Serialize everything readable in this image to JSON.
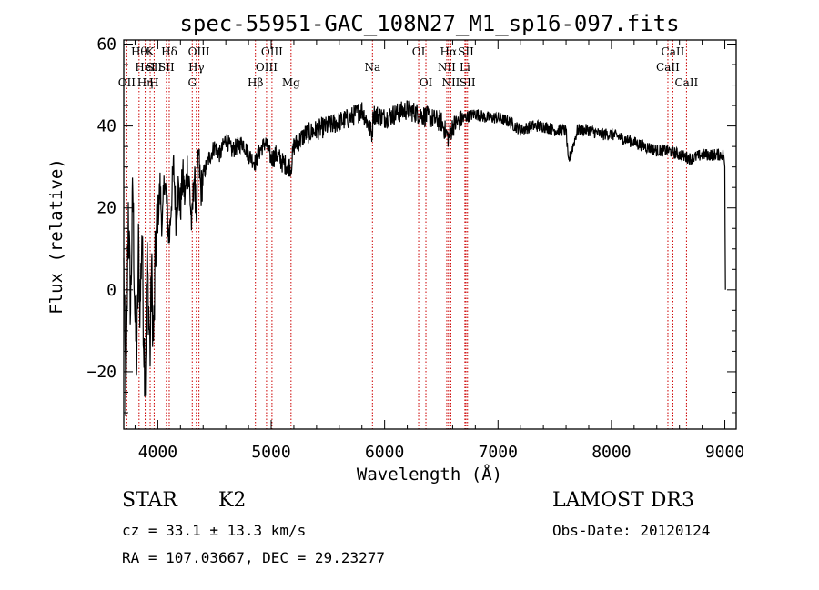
{
  "chart_data": {
    "type": "line",
    "title": "spec-55951-GAC_108N27_M1_sp16-097.fits",
    "xlabel": "Wavelength (Å)",
    "ylabel": "Flux (relative)",
    "xlim": [
      3700,
      9100
    ],
    "ylim": [
      -34,
      61
    ],
    "x_ticks": [
      4000,
      5000,
      6000,
      7000,
      8000,
      9000
    ],
    "y_ticks": [
      -20,
      0,
      20,
      40,
      60
    ],
    "grid": false,
    "line_color": "#000000",
    "marker_color": "#cc0000",
    "series": [
      {
        "name": "flux",
        "x": [
          3700,
          3720,
          3740,
          3760,
          3780,
          3800,
          3815,
          3830,
          3845,
          3860,
          3875,
          3890,
          3905,
          3920,
          3933,
          3945,
          3960,
          3968,
          3980,
          4000,
          4020,
          4040,
          4060,
          4080,
          4101,
          4120,
          4140,
          4160,
          4180,
          4200,
          4220,
          4240,
          4260,
          4280,
          4300,
          4320,
          4340,
          4360,
          4380,
          4400,
          4450,
          4500,
          4550,
          4600,
          4650,
          4700,
          4750,
          4800,
          4861,
          4900,
          4950,
          5000,
          5050,
          5100,
          5175,
          5200,
          5300,
          5400,
          5500,
          5600,
          5700,
          5800,
          5890,
          5900,
          6000,
          6100,
          6200,
          6300,
          6400,
          6500,
          6563,
          6600,
          6700,
          6800,
          6900,
          7000,
          7100,
          7200,
          7300,
          7400,
          7500,
          7600,
          7620,
          7700,
          7800,
          7900,
          8000,
          8100,
          8200,
          8300,
          8400,
          8500,
          8600,
          8700,
          8800,
          8900,
          8990,
          9000,
          9005
        ],
        "y": [
          5,
          -30,
          20,
          -5,
          25,
          -8,
          -18,
          10,
          -5,
          15,
          -10,
          -22,
          8,
          -5,
          -15,
          5,
          -12,
          -8,
          10,
          18,
          25,
          15,
          28,
          20,
          12,
          22,
          30,
          18,
          25,
          20,
          28,
          22,
          30,
          25,
          15,
          28,
          20,
          33,
          24,
          28,
          32,
          35,
          33,
          37,
          34,
          35,
          36,
          33,
          31,
          34,
          36,
          32,
          33,
          31,
          30,
          35,
          38,
          39,
          40,
          41,
          42,
          44,
          38,
          43,
          42,
          43,
          44,
          43,
          42,
          41,
          37,
          40,
          42,
          43,
          42,
          42,
          41,
          39,
          40,
          40,
          39,
          39,
          31,
          39,
          39,
          38,
          38,
          37,
          36,
          35,
          34,
          34,
          33,
          32,
          33,
          33,
          33,
          30,
          0
        ]
      }
    ],
    "annotation_lines": [
      {
        "x": 3727,
        "labels": [
          "OII"
        ],
        "rows": [
          3
        ]
      },
      {
        "x": 3835,
        "labels": [
          "Hθ"
        ],
        "rows": [
          1
        ]
      },
      {
        "x": 3889,
        "labels": [
          "HeI",
          "Hη"
        ],
        "rows": [
          2,
          3
        ]
      },
      {
        "x": 3933,
        "labels": [
          "K"
        ],
        "rows": [
          1
        ]
      },
      {
        "x": 3968,
        "labels": [
          "SII",
          "H"
        ],
        "rows": [
          2,
          3
        ]
      },
      {
        "x": 4101,
        "labels": [
          "Hδ"
        ],
        "rows": [
          1
        ]
      },
      {
        "x": 4076,
        "labels": [
          "SII"
        ],
        "rows": [
          2
        ]
      },
      {
        "x": 4304,
        "labels": [
          "G"
        ],
        "rows": [
          3
        ]
      },
      {
        "x": 4340,
        "labels": [
          "Hγ"
        ],
        "rows": [
          2
        ]
      },
      {
        "x": 4363,
        "labels": [
          "OIII"
        ],
        "rows": [
          1
        ]
      },
      {
        "x": 4861,
        "labels": [
          "Hβ"
        ],
        "rows": [
          3
        ]
      },
      {
        "x": 4959,
        "labels": [
          "OIII"
        ],
        "rows": [
          2
        ]
      },
      {
        "x": 5007,
        "labels": [
          "OIII"
        ],
        "rows": [
          1
        ]
      },
      {
        "x": 5175,
        "labels": [
          "Mg"
        ],
        "rows": [
          3
        ]
      },
      {
        "x": 5893,
        "labels": [
          "Na"
        ],
        "rows": [
          2
        ]
      },
      {
        "x": 6300,
        "labels": [
          "OI"
        ],
        "rows": [
          1
        ]
      },
      {
        "x": 6364,
        "labels": [
          "OI"
        ],
        "rows": [
          3
        ]
      },
      {
        "x": 6548,
        "labels": [
          "NII"
        ],
        "rows": [
          2
        ]
      },
      {
        "x": 6563,
        "labels": [
          "Hα"
        ],
        "rows": [
          1
        ]
      },
      {
        "x": 6584,
        "labels": [
          "NII"
        ],
        "rows": [
          3
        ]
      },
      {
        "x": 6708,
        "labels": [
          "Li"
        ],
        "rows": [
          2
        ]
      },
      {
        "x": 6717,
        "labels": [
          "SII"
        ],
        "rows": [
          1
        ]
      },
      {
        "x": 6731,
        "labels": [
          "SII"
        ],
        "rows": [
          3
        ]
      },
      {
        "x": 8498,
        "labels": [
          "CaII"
        ],
        "rows": [
          2
        ]
      },
      {
        "x": 8542,
        "labels": [
          "CaII"
        ],
        "rows": [
          1
        ]
      },
      {
        "x": 8662,
        "labels": [
          "CaII"
        ],
        "rows": [
          3
        ]
      }
    ]
  },
  "info": {
    "object_class": "STAR",
    "subclass": "K2",
    "survey": "LAMOST DR3",
    "redshift": "cz = 33.1 ± 13.3 km/s",
    "obs_date": "Obs-Date: 20120124",
    "coords": "RA = 107.03667, DEC =  29.23277"
  }
}
